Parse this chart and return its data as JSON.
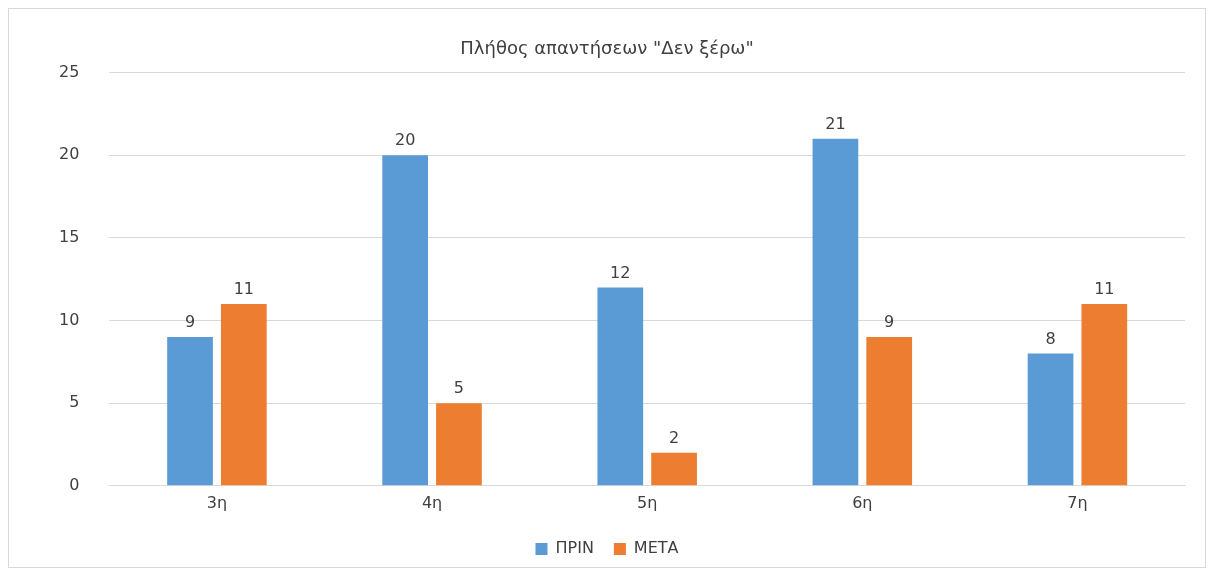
{
  "chart_data": {
    "type": "bar",
    "title": "Πλήθος απαντήσεων \"Δεν ξέρω\"",
    "categories": [
      "3η",
      "4η",
      "5η",
      "6η",
      "7η"
    ],
    "series": [
      {
        "name": "ΠΡΙΝ",
        "color": "#5b9bd5",
        "values": [
          9,
          20,
          12,
          21,
          8
        ]
      },
      {
        "name": "ΜΕΤΑ",
        "color": "#ed7d31",
        "values": [
          11,
          5,
          2,
          9,
          11
        ]
      }
    ],
    "ylim": [
      0,
      25
    ],
    "yticks": [
      0,
      5,
      10,
      15,
      20,
      25
    ],
    "grid": "y",
    "legend": "bottom",
    "data_labels": true
  }
}
